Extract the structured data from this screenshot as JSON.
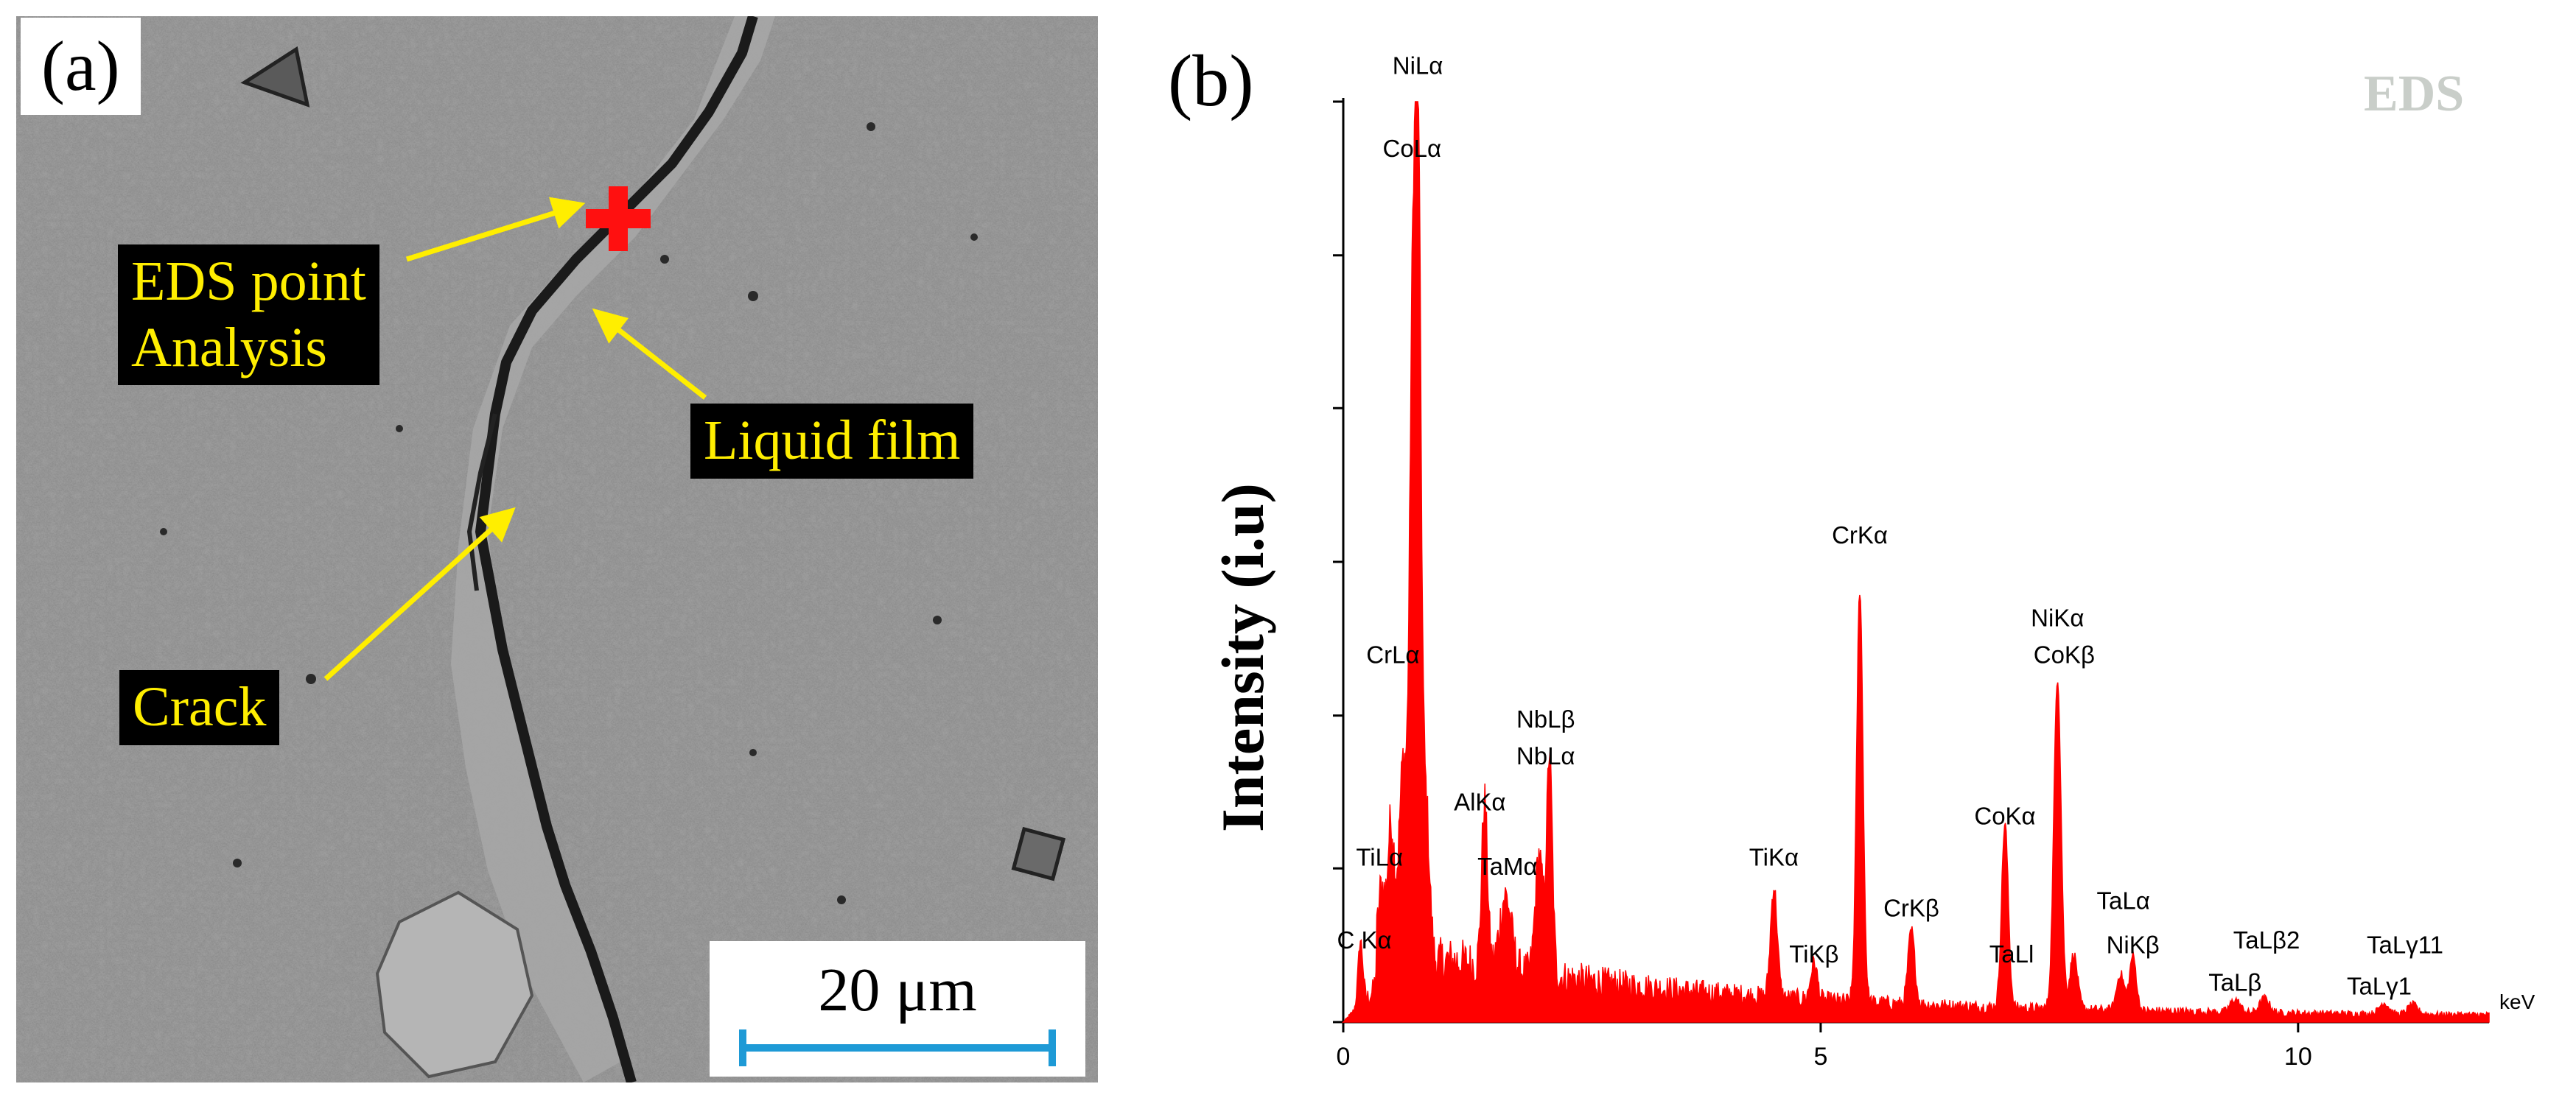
{
  "panel_a": {
    "letter": "(a)",
    "labels": {
      "eds_point": "EDS point\nAnalysis",
      "liquid_film": "Liquid film",
      "crack": "Crack"
    },
    "marker_icon": "red-plus-marker",
    "scale_bar": {
      "text": "20 μm",
      "color": "#1e9ad6"
    },
    "colors": {
      "label_bg": "#000000",
      "label_text": "#ffee00",
      "arrow": "#ffee00",
      "marker": "#ff0000"
    }
  },
  "panel_b": {
    "letter": "(b)",
    "tag": "EDS"
  },
  "chart_data": {
    "type": "line",
    "title": "",
    "tag": "EDS",
    "xlabel": "keV",
    "ylabel": "Intensity (i.u)",
    "xlim": [
      0,
      12
    ],
    "ylim": [
      0,
      100
    ],
    "x_ticks": [
      0,
      5,
      10
    ],
    "x_tick_labels": [
      "0",
      "5",
      "10"
    ],
    "y_ticks": [
      0,
      16.7,
      33.3,
      50,
      66.7,
      83.3,
      100
    ],
    "grid": false,
    "fill_color": "#ff0000",
    "background_level": 6,
    "peaks": [
      {
        "x": 0.18,
        "y": 7,
        "w": 0.025
      },
      {
        "x": 0.4,
        "y": 8,
        "w": 0.035
      },
      {
        "x": 0.5,
        "y": 15,
        "w": 0.035
      },
      {
        "x": 0.63,
        "y": 22,
        "w": 0.045
      },
      {
        "x": 0.72,
        "y": 54,
        "w": 0.028
      },
      {
        "x": 0.78,
        "y": 93,
        "w": 0.033
      },
      {
        "x": 0.87,
        "y": 16,
        "w": 0.035
      },
      {
        "x": 1.48,
        "y": 18,
        "w": 0.03
      },
      {
        "x": 1.7,
        "y": 8,
        "w": 0.06
      },
      {
        "x": 2.05,
        "y": 13,
        "w": 0.04
      },
      {
        "x": 2.16,
        "y": 24,
        "w": 0.03
      },
      {
        "x": 4.51,
        "y": 12,
        "w": 0.035
      },
      {
        "x": 4.93,
        "y": 4,
        "w": 0.035
      },
      {
        "x": 5.41,
        "y": 45,
        "w": 0.033
      },
      {
        "x": 5.95,
        "y": 8,
        "w": 0.035
      },
      {
        "x": 6.93,
        "y": 20,
        "w": 0.035
      },
      {
        "x": 7.48,
        "y": 36,
        "w": 0.038
      },
      {
        "x": 7.65,
        "y": 6,
        "w": 0.04
      },
      {
        "x": 8.14,
        "y": 4,
        "w": 0.04
      },
      {
        "x": 8.27,
        "y": 6,
        "w": 0.035
      },
      {
        "x": 9.34,
        "y": 1.4,
        "w": 0.05
      },
      {
        "x": 9.65,
        "y": 1.6,
        "w": 0.05
      },
      {
        "x": 10.9,
        "y": 1.2,
        "w": 0.05
      },
      {
        "x": 11.2,
        "y": 1.1,
        "w": 0.05
      }
    ],
    "annotations": [
      {
        "text": "NiLα",
        "x": 0.78,
        "y": 103
      },
      {
        "text": "CoLα",
        "x": 0.72,
        "y": 94
      },
      {
        "text": "CrLα",
        "x": 0.52,
        "y": 39
      },
      {
        "text": "TiLα",
        "x": 0.38,
        "y": 17
      },
      {
        "text": "C Kα",
        "x": 0.22,
        "y": 8
      },
      {
        "text": "AlKα",
        "x": 1.43,
        "y": 23
      },
      {
        "text": "TaMα",
        "x": 1.72,
        "y": 16
      },
      {
        "text": "NbLβ",
        "x": 2.12,
        "y": 32
      },
      {
        "text": "NbLα",
        "x": 2.12,
        "y": 28
      },
      {
        "text": "TiKα",
        "x": 4.51,
        "y": 17
      },
      {
        "text": "TiKβ",
        "x": 4.93,
        "y": 6.5
      },
      {
        "text": "CrKα",
        "x": 5.41,
        "y": 52
      },
      {
        "text": "CrKβ",
        "x": 5.95,
        "y": 11.5
      },
      {
        "text": "CoKα",
        "x": 6.93,
        "y": 21.5
      },
      {
        "text": "TaLl",
        "x": 7.0,
        "y": 6.5
      },
      {
        "text": "NiKα",
        "x": 7.48,
        "y": 43
      },
      {
        "text": "CoKβ",
        "x": 7.55,
        "y": 39
      },
      {
        "text": "TaLα",
        "x": 8.17,
        "y": 12.3
      },
      {
        "text": "NiKβ",
        "x": 8.27,
        "y": 7.5
      },
      {
        "text": "TaLβ2",
        "x": 9.67,
        "y": 8
      },
      {
        "text": "TaLβ",
        "x": 9.34,
        "y": 3.4
      },
      {
        "text": "TaLγ11",
        "x": 11.12,
        "y": 7.5
      },
      {
        "text": "TaLγ1",
        "x": 10.85,
        "y": 3.0
      }
    ]
  }
}
